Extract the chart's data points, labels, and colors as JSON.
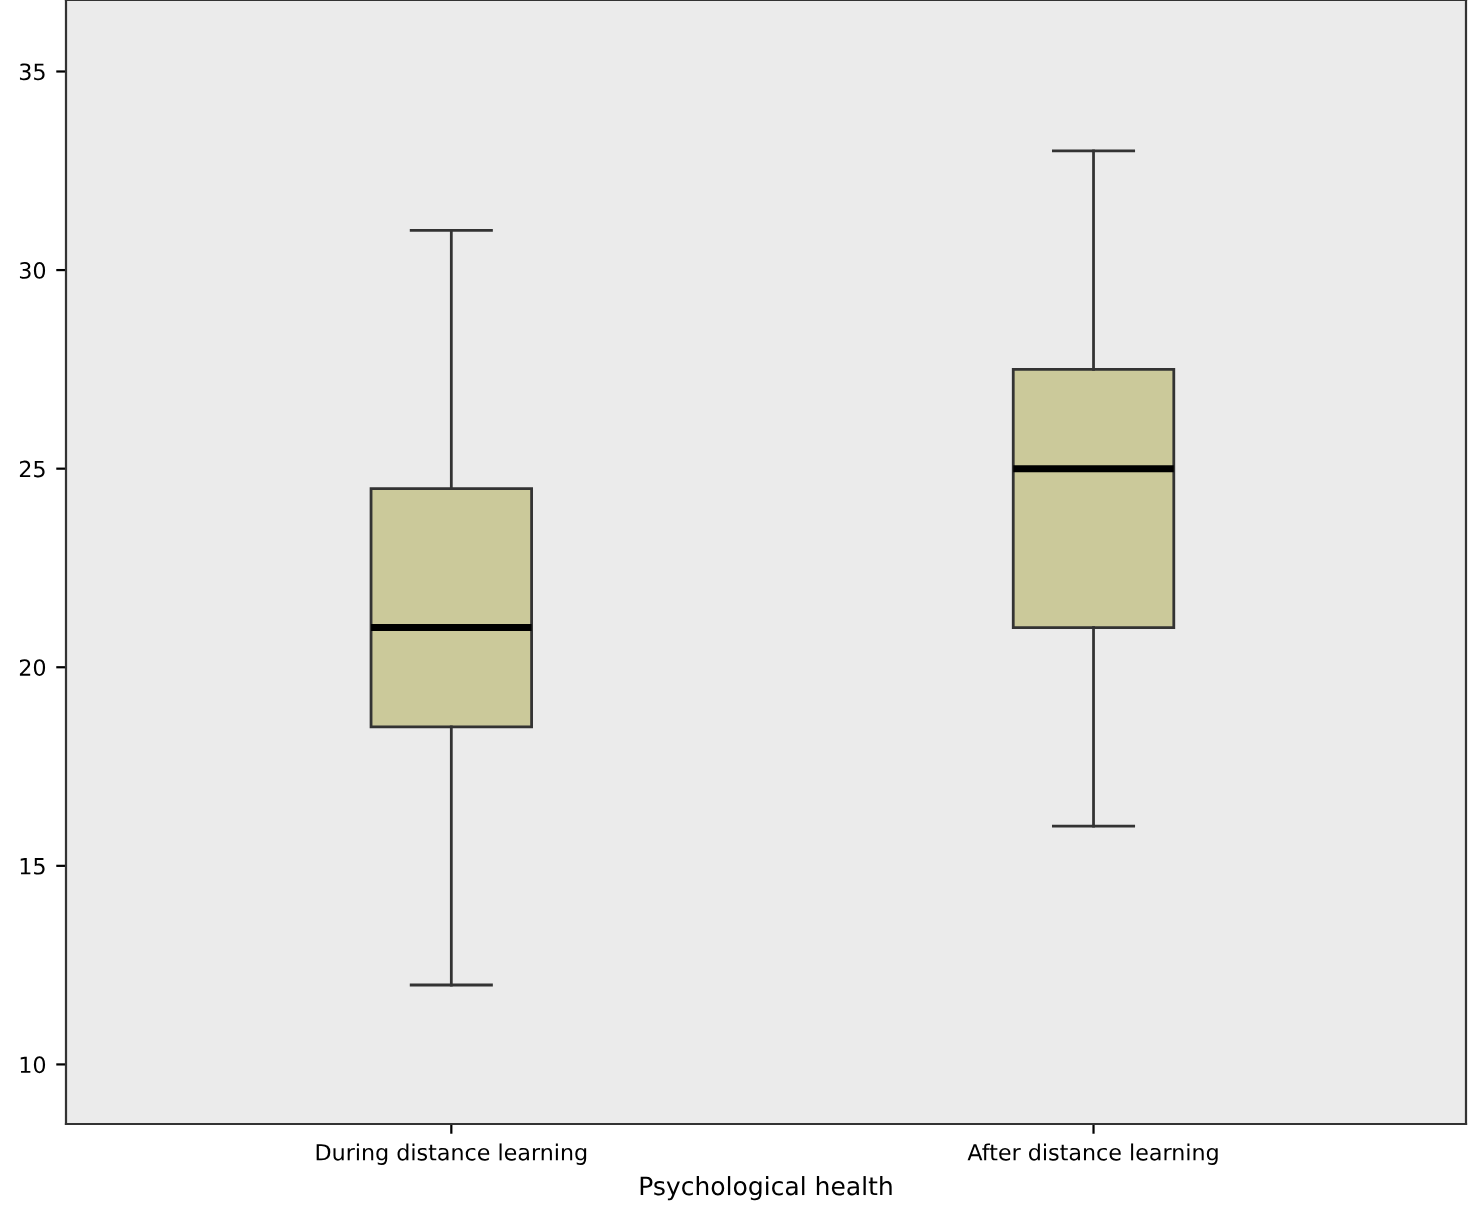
{
  "chart_data": {
    "type": "box",
    "xlabel": "Psychological health",
    "categories": [
      "During distance learning",
      "After distance learning"
    ],
    "boxes": [
      {
        "low": 12,
        "q1": 18.5,
        "median": 21,
        "q3": 24.5,
        "high": 31
      },
      {
        "low": 16,
        "q1": 21,
        "median": 25,
        "q3": 27.5,
        "high": 33
      }
    ],
    "color": "#cbc99a",
    "ylim": [
      8.5,
      36.8
    ],
    "yticks": [
      10,
      15,
      20,
      25,
      30,
      35
    ],
    "grid": false,
    "legend": false
  }
}
